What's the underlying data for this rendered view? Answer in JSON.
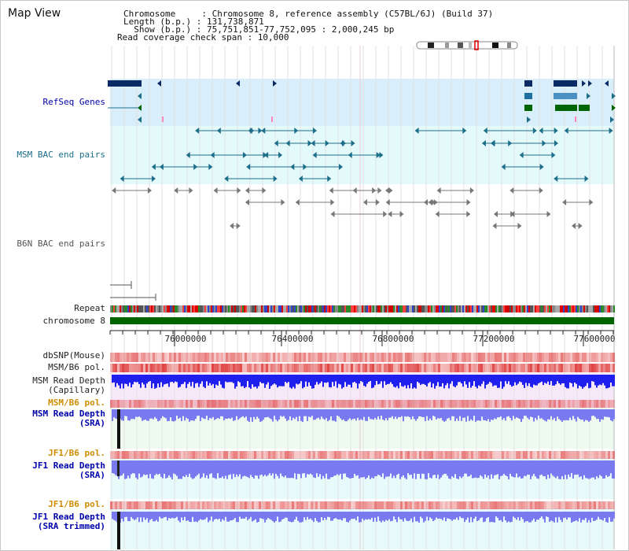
{
  "app": {
    "title": "Map View"
  },
  "info": {
    "chromosome_line": "Chromosome     : Chromosome 8, reference assembly (C57BL/6J) (Build 37)",
    "length_line": "Length (b.p.) : 131,738,871",
    "show_line": "  Show (b.p.) : 75,751,851-77,752,095 : 2,000,245 bp",
    "read_coverage_line": "Read coverage check span : 10,000"
  },
  "tracks": {
    "refseq": "RefSeq Genes",
    "msm_bac": "MSM BAC end pairs",
    "b6n_bac": "B6N BAC end pairs",
    "repeat": "Repeat",
    "chromosome": "chromosome 8",
    "dbsnp": "dbSNP(Mouse)",
    "msm_pol": "MSM/B6 pol.",
    "msm_depth_cap_1": "MSM Read Depth",
    "msm_depth_cap_2": "(Capillary)",
    "msm_pol_2": "MSM/B6 pol.",
    "msm_depth_sra_1": "MSM Read Depth",
    "msm_depth_sra_2": "(SRA)",
    "jf1_pol": "JF1/B6 pol.",
    "jf1_depth_sra_1": "JF1 Read Depth",
    "jf1_depth_sra_2": "(SRA)",
    "jf1_pol_2": "JF1/B6 pol.",
    "jf1_depth_trim_1": "JF1 Read Depth",
    "jf1_depth_trim_2": "(SRA trimmed)"
  },
  "ruler": {
    "ticks": [
      "76000000",
      "76400000",
      "76800000",
      "77200000",
      "77600000"
    ]
  },
  "colors": {
    "refseq_bg": "#d8eefa",
    "bac_bg": "#e4fafa",
    "refseq_gene": "#0a2a66",
    "bac_pair": "#1c6e8a",
    "b6n_pair": "#777777",
    "chromosome_bar": "#006400",
    "depth_blue": "#2020ee",
    "depth_light": "#7a7af0",
    "pol_red": "#e04040",
    "depth_bg_pink": "#f6e8f8",
    "depth_bg_green": "#eefaee",
    "depth_bg_cyan": "#e8fafa"
  },
  "icons": {
    "ideogram": "chromosome-ideogram-icon"
  }
}
